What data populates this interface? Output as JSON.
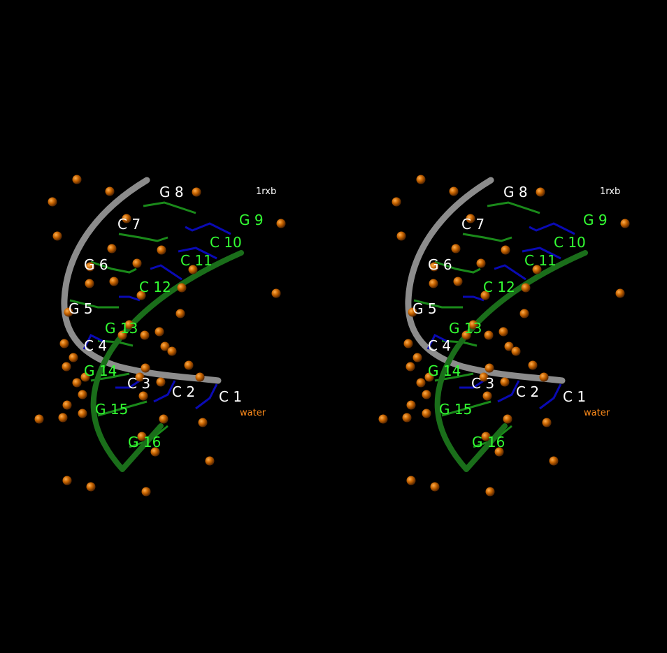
{
  "structure_id": "1rxb",
  "water_label": "water",
  "colors": {
    "background": "#000000",
    "strand1_label": "#ffffff",
    "strand2_label": "#33ff33",
    "guanine": "#1a8a1a",
    "cytosine": "#0a0ab4",
    "backbone_strand1": "#8c8c8c",
    "backbone_strand2": "#1a6e1a",
    "water": "#c86400",
    "water_label": "#ff8c1a",
    "id_label": "#ffffff"
  },
  "view": "stereo pair",
  "residues_strand1": [
    "C 1",
    "C 2",
    "C 3",
    "C 4",
    "G 5",
    "G 6",
    "C 7",
    "G 8"
  ],
  "residues_strand2": [
    "G 9",
    "C 10",
    "C 11",
    "C 12",
    "G 13",
    "G 14",
    "G 15",
    "G 16"
  ]
}
